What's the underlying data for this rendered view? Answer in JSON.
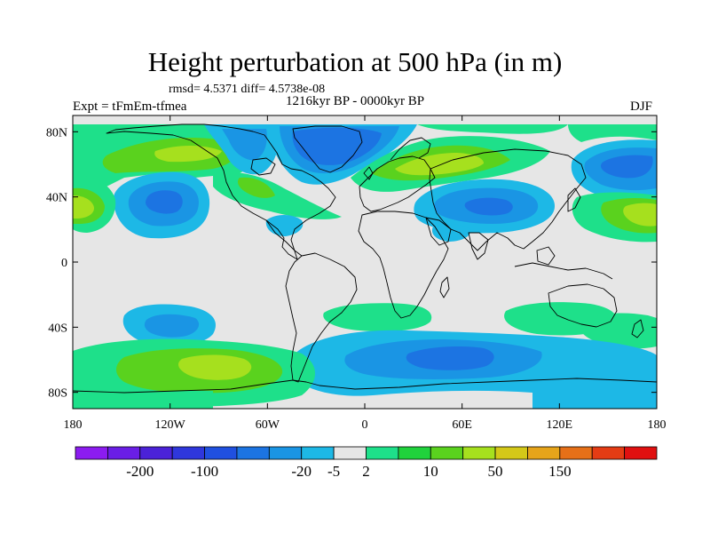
{
  "title": "Height perturbation at 500 hPa (in m)",
  "stats": "rmsd= 4.5371 diff= 4.5738e-08",
  "period": "1216kyr BP - 0000kyr BP",
  "experiment": "Expt = tFmEm-tfmea",
  "season": "DJF",
  "map": {
    "projection": "cylindrical-equidistant",
    "lon_range": [
      -180,
      180
    ],
    "lat_range": [
      -90,
      90
    ],
    "lat_ticks": [
      {
        "lat": 80,
        "label": "80N"
      },
      {
        "lat": 40,
        "label": "40N"
      },
      {
        "lat": 0,
        "label": "0"
      },
      {
        "lat": -40,
        "label": "40S"
      },
      {
        "lat": -80,
        "label": "80S"
      }
    ],
    "lon_ticks": [
      {
        "lon": -180,
        "label": "180"
      },
      {
        "lon": -120,
        "label": "120W"
      },
      {
        "lon": -60,
        "label": "60W"
      },
      {
        "lon": 0,
        "label": "0"
      },
      {
        "lon": 60,
        "label": "60E"
      },
      {
        "lon": 120,
        "label": "120E"
      },
      {
        "lon": 180,
        "label": "180"
      }
    ],
    "background_color": "#e6e6e6",
    "coastline_color": "#000000"
  },
  "colorbar": {
    "colors": [
      "#8c1cf0",
      "#6a1ee6",
      "#4b22d8",
      "#2f37dc",
      "#2050e0",
      "#1c74e2",
      "#1a95e4",
      "#1db8e6",
      "#e6e6e6",
      "#1ee08a",
      "#20d23c",
      "#5ad21e",
      "#a6e01e",
      "#d4c818",
      "#e6a41a",
      "#e67018",
      "#e43c14",
      "#e01010"
    ],
    "label_boundaries": [
      2,
      4,
      7,
      8,
      9,
      11,
      13,
      15
    ],
    "labels": [
      "-200",
      "-100",
      "-20",
      "-5",
      "2",
      "10",
      "50",
      "150"
    ]
  }
}
